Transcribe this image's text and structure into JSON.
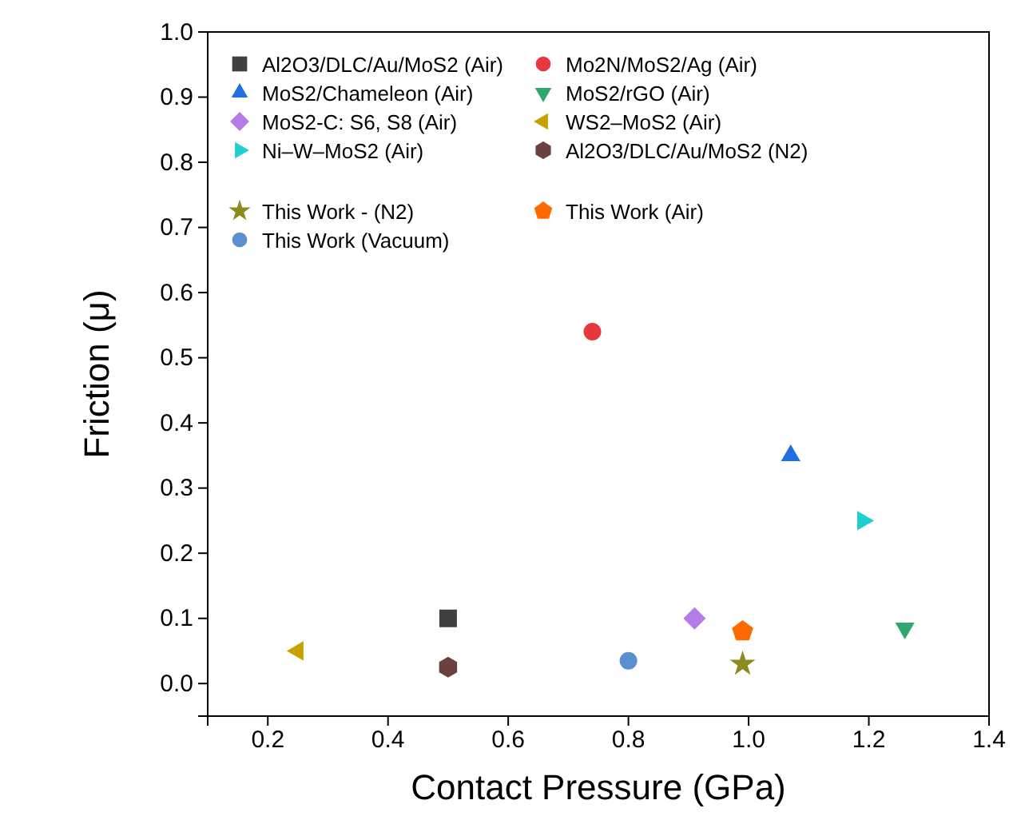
{
  "chart_data": {
    "type": "scatter",
    "xlabel": "Contact Pressure (GPa)",
    "ylabel": "Friction (μ)",
    "xlim": [
      0.1,
      1.4
    ],
    "ylim": [
      -0.05,
      1.0
    ],
    "xticks": [
      0.2,
      0.4,
      0.6,
      0.8,
      {
        "value": 1,
        "label": "1.0"
      },
      1.2,
      1.4
    ],
    "yticks": [
      {
        "value": 0,
        "label": "0.0"
      },
      0.1,
      0.2,
      0.3,
      0.4,
      0.5,
      0.6,
      0.7,
      0.8,
      0.9,
      {
        "value": 1,
        "label": "1.0"
      }
    ],
    "grid": false,
    "legend": "top left",
    "series": [
      {
        "name": "Al2O3/DLC/Au/MoS2 (Air)",
        "color": "#404040",
        "marker": "square",
        "x": [
          0.5
        ],
        "values": [
          0.1
        ]
      },
      {
        "name": "Mo2N/MoS2/Ag (Air)",
        "color": "#e8383d",
        "marker": "circle",
        "x": [
          0.74
        ],
        "values": [
          0.54
        ]
      },
      {
        "name": "MoS2/Chameleon (Air)",
        "color": "#1f6fe0",
        "marker": "triangle",
        "x": [
          1.07
        ],
        "values": [
          0.35
        ]
      },
      {
        "name": "MoS2/rGO (Air)",
        "color": "#2ea86e",
        "marker": "triangle-down",
        "x": [
          1.26
        ],
        "values": [
          0.085
        ]
      },
      {
        "name": "MoS2-C: S6, S8 (Air)",
        "color": "#b57be8",
        "marker": "diamond",
        "x": [
          0.91
        ],
        "values": [
          0.1
        ]
      },
      {
        "name": "WS2–MoS2 (Air)",
        "color": "#c8a000",
        "marker": "triangle-left",
        "x": [
          0.25
        ],
        "values": [
          0.05
        ]
      },
      {
        "name": "Ni–W–MoS2 (Air)",
        "color": "#1fcfcf",
        "marker": "triangle-right",
        "x": [
          1.19
        ],
        "values": [
          0.25
        ]
      },
      {
        "name": "Al2O3/DLC/Au/MoS2 (N2)",
        "color": "#6b4040",
        "x": [
          0.5
        ],
        "values": [
          0.025
        ]
      },
      {
        "name": "This Work - (N2)",
        "color": "#8c8c1e",
        "marker": "star",
        "x": [
          0.99
        ],
        "values": [
          0.03
        ]
      },
      {
        "name": "This Work (Air)",
        "color": "#ff6a00",
        "x": [
          0.99
        ],
        "values": [
          0.08
        ]
      },
      {
        "name": "This Work (Vacuum)",
        "color": "#5b8fd0",
        "marker": "circle",
        "x": [
          0.8
        ],
        "values": [
          0.035
        ]
      }
    ]
  }
}
